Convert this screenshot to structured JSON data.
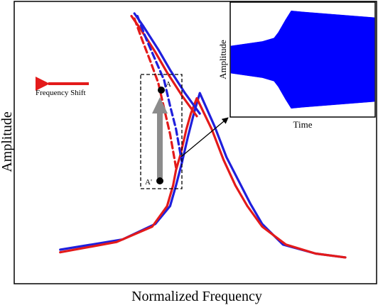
{
  "chart_data": [
    {
      "type": "line",
      "xlabel": "Normalized Frequency",
      "ylabel": "Amplitude",
      "xlim": [
        0,
        1
      ],
      "ylim": [
        0,
        1
      ],
      "grid": false,
      "series": [
        {
          "color": "#1f1fdc",
          "style": "solid",
          "points": [
            [
              0.04,
              0.08
            ],
            [
              0.25,
              0.12
            ],
            [
              0.36,
              0.18
            ],
            [
              0.41,
              0.25
            ],
            [
              0.43,
              0.33
            ],
            [
              0.45,
              0.42
            ],
            [
              0.47,
              0.52
            ],
            [
              0.49,
              0.61
            ],
            [
              0.51,
              0.69
            ],
            [
              0.56,
              0.56
            ],
            [
              0.6,
              0.44
            ],
            [
              0.64,
              0.35
            ],
            [
              0.68,
              0.26
            ],
            [
              0.72,
              0.18
            ],
            [
              0.79,
              0.1
            ],
            [
              0.9,
              0.065
            ],
            [
              1.0,
              0.05
            ]
          ]
        },
        {
          "color": "#e31a1a",
          "style": "solid",
          "points": [
            [
              0.04,
              0.07
            ],
            [
              0.23,
              0.11
            ],
            [
              0.35,
              0.17
            ],
            [
              0.4,
              0.25
            ],
            [
              0.42,
              0.33
            ],
            [
              0.43,
              0.39
            ],
            [
              0.445,
              0.45
            ],
            [
              0.465,
              0.55
            ],
            [
              0.48,
              0.61
            ],
            [
              0.5,
              0.67
            ],
            [
              0.55,
              0.55
            ],
            [
              0.59,
              0.43
            ],
            [
              0.63,
              0.33
            ],
            [
              0.67,
              0.25
            ],
            [
              0.72,
              0.17
            ],
            [
              0.8,
              0.1
            ],
            [
              0.9,
              0.065
            ],
            [
              1.0,
              0.05
            ]
          ]
        },
        {
          "color": "#1f1fdc",
          "style": "solid",
          "points": [
            [
              0.29,
              1.0
            ],
            [
              0.32,
              0.95
            ],
            [
              0.37,
              0.86
            ],
            [
              0.41,
              0.78
            ],
            [
              0.46,
              0.69
            ],
            [
              0.51,
              0.61
            ]
          ]
        },
        {
          "color": "#e31a1a",
          "style": "solid",
          "points": [
            [
              0.28,
              0.99
            ],
            [
              0.31,
              0.94
            ],
            [
              0.36,
              0.85
            ],
            [
              0.4,
              0.77
            ],
            [
              0.45,
              0.68
            ],
            [
              0.5,
              0.6
            ]
          ]
        },
        {
          "color": "#1f1fdc",
          "style": "dashed",
          "points": [
            [
              0.3,
              0.99
            ],
            [
              0.33,
              0.9
            ],
            [
              0.36,
              0.82
            ],
            [
              0.39,
              0.74
            ],
            [
              0.41,
              0.64
            ],
            [
              0.43,
              0.55
            ],
            [
              0.45,
              0.42
            ]
          ]
        },
        {
          "color": "#e31a1a",
          "style": "dashed",
          "points": [
            [
              0.29,
              0.98
            ],
            [
              0.315,
              0.9
            ],
            [
              0.345,
              0.81
            ],
            [
              0.37,
              0.73
            ],
            [
              0.39,
              0.63
            ],
            [
              0.41,
              0.53
            ],
            [
              0.43,
              0.4
            ]
          ]
        }
      ],
      "annotations": [
        {
          "text": "Frequency Shift",
          "arrow_direction": "left",
          "arrow_color": "#e31a1a"
        },
        {
          "text": "A",
          "x": 0.46,
          "y": 0.73
        },
        {
          "text": "A'",
          "x": 0.44,
          "y": 0.38
        }
      ]
    },
    {
      "type": "area",
      "xlabel": "Time",
      "ylabel": "Amplitude",
      "color": "#0000ff",
      "series": [
        {
          "name": "",
          "upper": [
            [
              0,
              0.62
            ],
            [
              0.22,
              0.66
            ],
            [
              0.3,
              0.69
            ],
            [
              0.33,
              0.74
            ],
            [
              0.38,
              0.85
            ],
            [
              0.42,
              0.93
            ],
            [
              0.5,
              0.92
            ],
            [
              0.7,
              0.9
            ],
            [
              1.0,
              0.87
            ]
          ],
          "lower": [
            [
              0,
              0.38
            ],
            [
              0.22,
              0.34
            ],
            [
              0.3,
              0.31
            ],
            [
              0.33,
              0.26
            ],
            [
              0.38,
              0.15
            ],
            [
              0.42,
              0.07
            ],
            [
              0.5,
              0.08
            ],
            [
              0.7,
              0.1
            ],
            [
              1.0,
              0.13
            ]
          ]
        }
      ],
      "xlim": [
        0,
        1
      ],
      "ylim": [
        0,
        1
      ]
    }
  ]
}
